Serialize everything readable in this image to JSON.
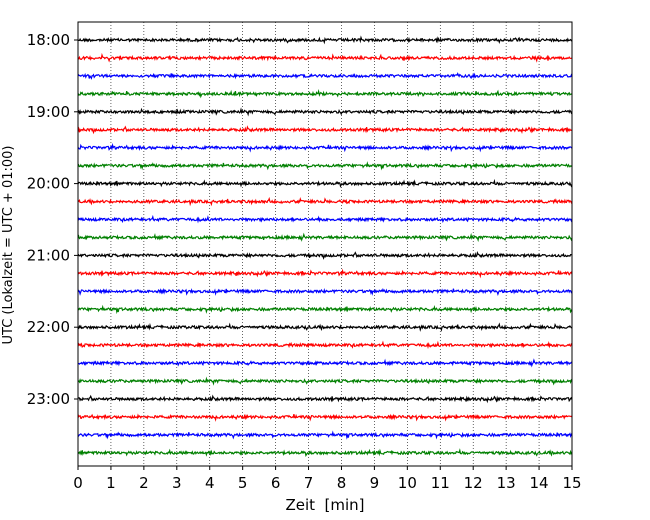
{
  "chart_data": {
    "type": "line",
    "title": "",
    "xlabel": "Zeit  [min]",
    "ylabel": "UTC (Lokalzeit = UTC + 01:00)",
    "xlim": [
      0,
      15
    ],
    "x_ticks": [
      "0",
      "1",
      "2",
      "3",
      "4",
      "5",
      "6",
      "7",
      "8",
      "9",
      "10",
      "11",
      "12",
      "13",
      "14",
      "15"
    ],
    "y_tick_labels": [
      "18:00",
      "19:00",
      "20:00",
      "21:00",
      "22:00",
      "23:00"
    ],
    "grid": "vertical dotted at each minute",
    "trace_interval_minutes": 15,
    "line_colors": [
      "#000000",
      "#ff0000",
      "#0000ff",
      "#008000"
    ],
    "traces": [
      {
        "start": "18:00",
        "color": "#000000"
      },
      {
        "start": "18:15",
        "color": "#ff0000"
      },
      {
        "start": "18:30",
        "color": "#0000ff"
      },
      {
        "start": "18:45",
        "color": "#008000"
      },
      {
        "start": "19:00",
        "color": "#000000"
      },
      {
        "start": "19:15",
        "color": "#ff0000"
      },
      {
        "start": "19:30",
        "color": "#0000ff"
      },
      {
        "start": "19:45",
        "color": "#008000"
      },
      {
        "start": "20:00",
        "color": "#000000"
      },
      {
        "start": "20:15",
        "color": "#ff0000"
      },
      {
        "start": "20:30",
        "color": "#0000ff"
      },
      {
        "start": "20:45",
        "color": "#008000"
      },
      {
        "start": "21:00",
        "color": "#000000"
      },
      {
        "start": "21:15",
        "color": "#ff0000"
      },
      {
        "start": "21:30",
        "color": "#0000ff"
      },
      {
        "start": "21:45",
        "color": "#008000"
      },
      {
        "start": "22:00",
        "color": "#000000"
      },
      {
        "start": "22:15",
        "color": "#ff0000"
      },
      {
        "start": "22:30",
        "color": "#0000ff"
      },
      {
        "start": "22:45",
        "color": "#008000"
      },
      {
        "start": "23:00",
        "color": "#000000"
      },
      {
        "start": "23:15",
        "color": "#ff0000"
      },
      {
        "start": "23:30",
        "color": "#0000ff"
      },
      {
        "start": "23:45",
        "color": "#008000"
      }
    ]
  }
}
